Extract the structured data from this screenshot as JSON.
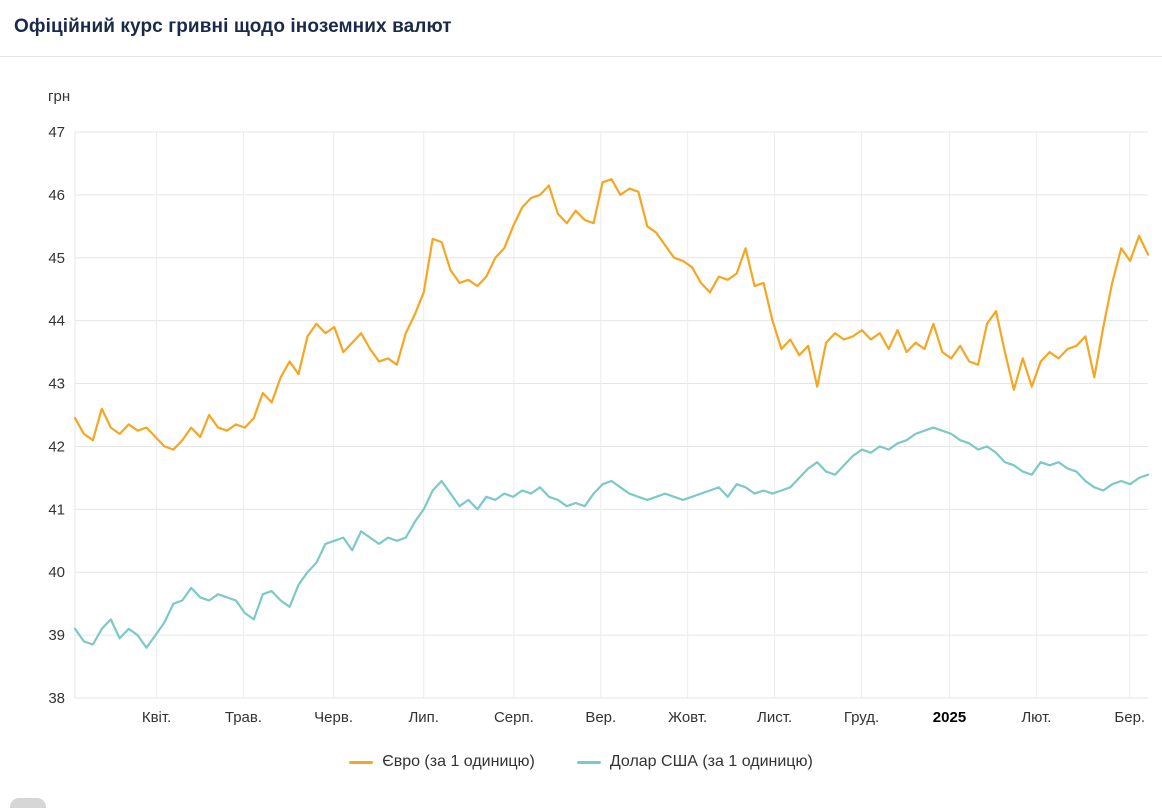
{
  "header": {
    "title": "Офіційний курс гривні щодо іноземних валют"
  },
  "chart_data": {
    "type": "line",
    "title": "Офіційний курс гривні щодо іноземних валют",
    "xlabel": "",
    "ylabel": "грн",
    "ylim": [
      38,
      47
    ],
    "yticks": [
      38,
      39,
      40,
      41,
      42,
      43,
      44,
      45,
      46,
      47
    ],
    "grid": true,
    "legend_position": "bottom",
    "xticks": [
      {
        "label": "Квіт.",
        "pos": 0.076,
        "bold": false
      },
      {
        "label": "Трав.",
        "pos": 0.157,
        "bold": false
      },
      {
        "label": "Черв.",
        "pos": 0.241,
        "bold": false
      },
      {
        "label": "Лип.",
        "pos": 0.325,
        "bold": false
      },
      {
        "label": "Серп.",
        "pos": 0.409,
        "bold": false
      },
      {
        "label": "Вер.",
        "pos": 0.49,
        "bold": false
      },
      {
        "label": "Жовт.",
        "pos": 0.571,
        "bold": false
      },
      {
        "label": "Лист.",
        "pos": 0.652,
        "bold": false
      },
      {
        "label": "Груд.",
        "pos": 0.733,
        "bold": false
      },
      {
        "label": "2025",
        "pos": 0.815,
        "bold": true
      },
      {
        "label": "Лют.",
        "pos": 0.896,
        "bold": false
      },
      {
        "label": "Бер.",
        "pos": 0.983,
        "bold": false
      }
    ],
    "series": [
      {
        "key": "euro",
        "name": "Євро (за 1 одиницю)",
        "color": "#f5a623",
        "values": [
          42.45,
          42.2,
          42.1,
          42.6,
          42.3,
          42.2,
          42.35,
          42.25,
          42.3,
          42.15,
          42.0,
          41.95,
          42.1,
          42.3,
          42.15,
          42.5,
          42.3,
          42.25,
          42.35,
          42.3,
          42.45,
          42.85,
          42.7,
          43.1,
          43.35,
          43.15,
          43.75,
          43.95,
          43.8,
          43.9,
          43.5,
          43.65,
          43.8,
          43.55,
          43.35,
          43.4,
          43.3,
          43.8,
          44.1,
          44.45,
          45.3,
          45.25,
          44.8,
          44.6,
          44.65,
          44.55,
          44.7,
          45.0,
          45.15,
          45.5,
          45.8,
          45.95,
          46.0,
          46.15,
          45.7,
          45.55,
          45.75,
          45.6,
          45.55,
          46.2,
          46.25,
          46.0,
          46.1,
          46.05,
          45.5,
          45.4,
          45.2,
          45.0,
          44.95,
          44.85,
          44.6,
          44.45,
          44.7,
          44.65,
          44.75,
          45.15,
          44.55,
          44.6,
          44.0,
          43.55,
          43.7,
          43.45,
          43.6,
          42.95,
          43.65,
          43.8,
          43.7,
          43.75,
          43.85,
          43.7,
          43.8,
          43.55,
          43.85,
          43.5,
          43.65,
          43.55,
          43.95,
          43.5,
          43.4,
          43.6,
          43.35,
          43.3,
          43.95,
          44.15,
          43.5,
          42.9,
          43.4,
          42.95,
          43.35,
          43.5,
          43.4,
          43.55,
          43.6,
          43.75,
          43.1,
          43.9,
          44.6,
          45.15,
          44.95,
          45.35,
          45.05
        ]
      },
      {
        "key": "usd",
        "name": "Долар США (за 1 одиницю)",
        "color": "#7cc9c6",
        "values": [
          39.1,
          38.9,
          38.85,
          39.1,
          39.25,
          38.95,
          39.1,
          39.0,
          38.8,
          39.0,
          39.2,
          39.5,
          39.55,
          39.75,
          39.6,
          39.55,
          39.65,
          39.6,
          39.55,
          39.35,
          39.25,
          39.65,
          39.7,
          39.55,
          39.45,
          39.8,
          40.0,
          40.15,
          40.45,
          40.5,
          40.55,
          40.35,
          40.65,
          40.55,
          40.45,
          40.55,
          40.5,
          40.55,
          40.8,
          41.0,
          41.3,
          41.45,
          41.25,
          41.05,
          41.15,
          41.0,
          41.2,
          41.15,
          41.25,
          41.2,
          41.3,
          41.25,
          41.35,
          41.2,
          41.15,
          41.05,
          41.1,
          41.05,
          41.25,
          41.4,
          41.45,
          41.35,
          41.25,
          41.2,
          41.15,
          41.2,
          41.25,
          41.2,
          41.15,
          41.2,
          41.25,
          41.3,
          41.35,
          41.2,
          41.4,
          41.35,
          41.25,
          41.3,
          41.25,
          41.3,
          41.35,
          41.5,
          41.65,
          41.75,
          41.6,
          41.55,
          41.7,
          41.85,
          41.95,
          41.9,
          42.0,
          41.95,
          42.05,
          42.1,
          42.2,
          42.25,
          42.3,
          42.25,
          42.2,
          42.1,
          42.05,
          41.95,
          42.0,
          41.9,
          41.75,
          41.7,
          41.6,
          41.55,
          41.75,
          41.7,
          41.75,
          41.65,
          41.6,
          41.45,
          41.35,
          41.3,
          41.4,
          41.45,
          41.4,
          41.5,
          41.55
        ]
      }
    ]
  }
}
